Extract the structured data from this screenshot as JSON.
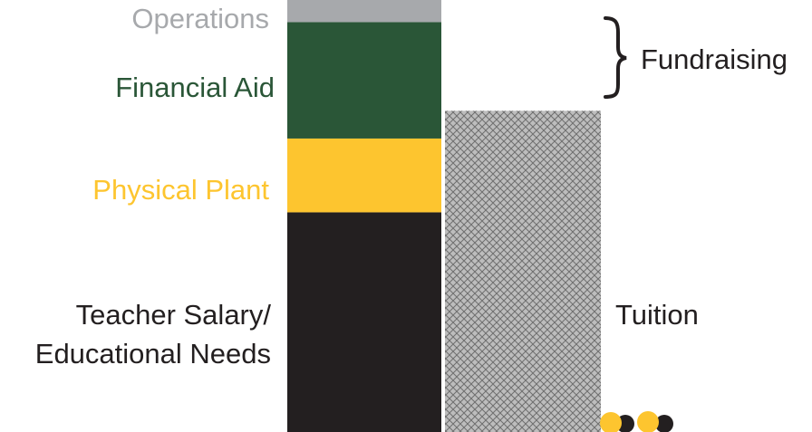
{
  "chart_data": {
    "type": "bar",
    "stacked": true,
    "title": "",
    "xlabel": "",
    "ylabel": "",
    "legend": "none",
    "grid": false,
    "axes_visible": false,
    "ylim": [
      0,
      100
    ],
    "bars": [
      {
        "name": "",
        "segments": [
          {
            "label": "Teacher Salary/",
            "label_line2": "Educational Needs",
            "value": 51.5,
            "color": "#231f20"
          },
          {
            "label": "Physical Plant",
            "value": 17.3,
            "color": "#fdc52f"
          },
          {
            "label": "Financial Aid",
            "value": 27.3,
            "color": "#2a5637"
          },
          {
            "label": "Operations",
            "value": 6.2,
            "color": "#a7a9ac"
          }
        ]
      },
      {
        "name": "",
        "segments": [
          {
            "label": "Tuition",
            "value": 75.3,
            "color": "#8c8c8c",
            "pattern": "crosshatch"
          }
        ]
      }
    ],
    "annotations": [
      {
        "text": "Fundraising",
        "type": "brace",
        "spans": [
          "Operations",
          "Financial Aid"
        ]
      }
    ]
  },
  "decoration": {
    "logo_dot_colors": [
      "#fdc52f",
      "#231f20",
      "#fdc52f",
      "#231f20"
    ]
  }
}
